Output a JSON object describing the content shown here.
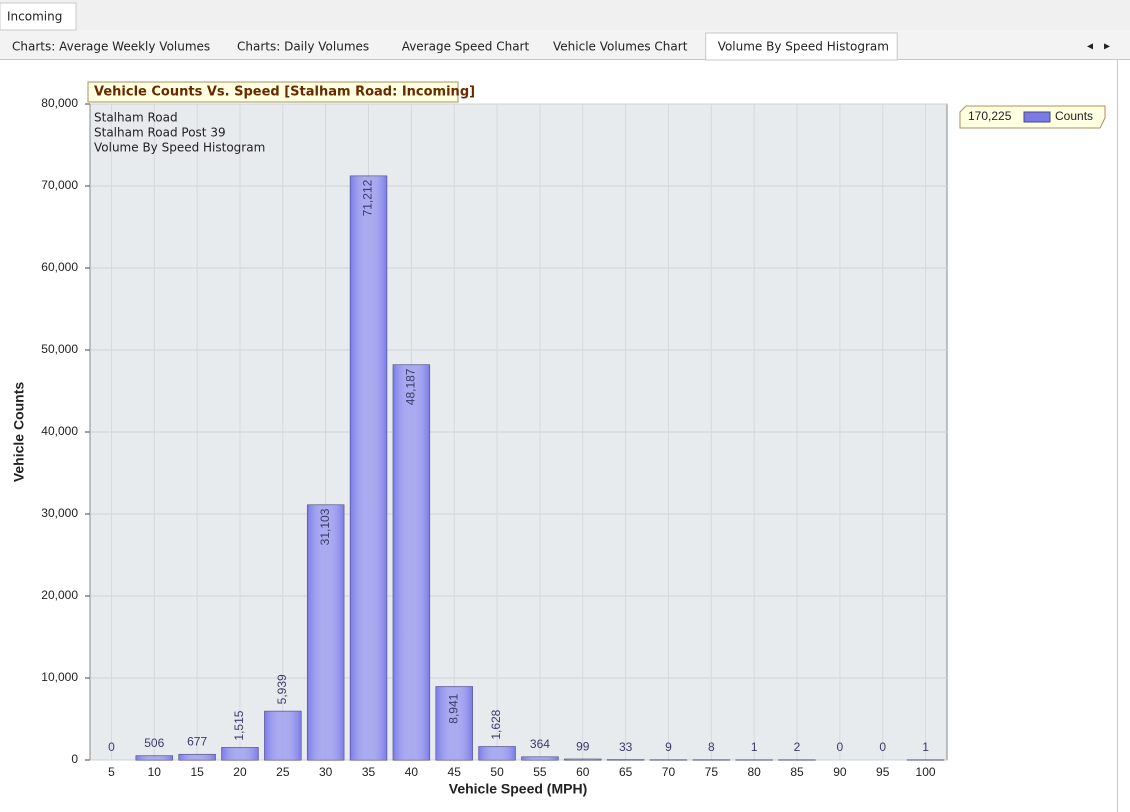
{
  "top_tabs": [
    "Incoming"
  ],
  "tabs": [
    "Charts: Average Weekly Volumes",
    "Charts: Daily Volumes",
    "Average Speed Chart",
    "Vehicle Volumes Chart",
    "Volume By Speed Histogram"
  ],
  "active_tab": 4,
  "chart_data": {
    "type": "bar",
    "title": "Vehicle Counts Vs. Speed [Stalham Road: Incoming]",
    "notes": [
      "Stalham Road",
      "Stalham Road Post 39",
      "Volume By Speed Histogram"
    ],
    "x_label": "Vehicle Speed (MPH)",
    "y_label": "Vehicle Counts",
    "categories": [
      "5",
      "10",
      "15",
      "20",
      "25",
      "30",
      "35",
      "40",
      "45",
      "50",
      "55",
      "60",
      "65",
      "70",
      "75",
      "80",
      "85",
      "90",
      "95",
      "100"
    ],
    "series": [
      {
        "name": "Counts",
        "color": "#7b7be8",
        "values": [
          0,
          506,
          677,
          1515,
          5939,
          31103,
          71212,
          48187,
          8941,
          1628,
          364,
          99,
          33,
          9,
          8,
          1,
          2,
          0,
          0,
          1
        ],
        "value_labels": [
          "0",
          "506",
          "677",
          "1,515",
          "5,939",
          "31,103",
          "71,212",
          "48,187",
          "8,941",
          "1,628",
          "364",
          "99",
          "33",
          "9",
          "8",
          "1",
          "2",
          "0",
          "0",
          "1"
        ]
      }
    ],
    "legend_total": {
      "value": 170225,
      "label": "170,225"
    },
    "ylim": [
      0,
      80000
    ],
    "yticks": [
      0,
      {
        "value": 10000,
        "label": "10,000"
      },
      {
        "value": 20000,
        "label": "20,000"
      },
      {
        "value": 30000,
        "label": "30,000"
      },
      {
        "value": 40000,
        "label": "40,000"
      },
      {
        "value": 50000,
        "label": "50,000"
      },
      {
        "value": 60000,
        "label": "60,000"
      },
      {
        "value": 70000,
        "label": "70,000"
      },
      {
        "value": 80000,
        "label": "80,000"
      }
    ],
    "grid": true
  }
}
